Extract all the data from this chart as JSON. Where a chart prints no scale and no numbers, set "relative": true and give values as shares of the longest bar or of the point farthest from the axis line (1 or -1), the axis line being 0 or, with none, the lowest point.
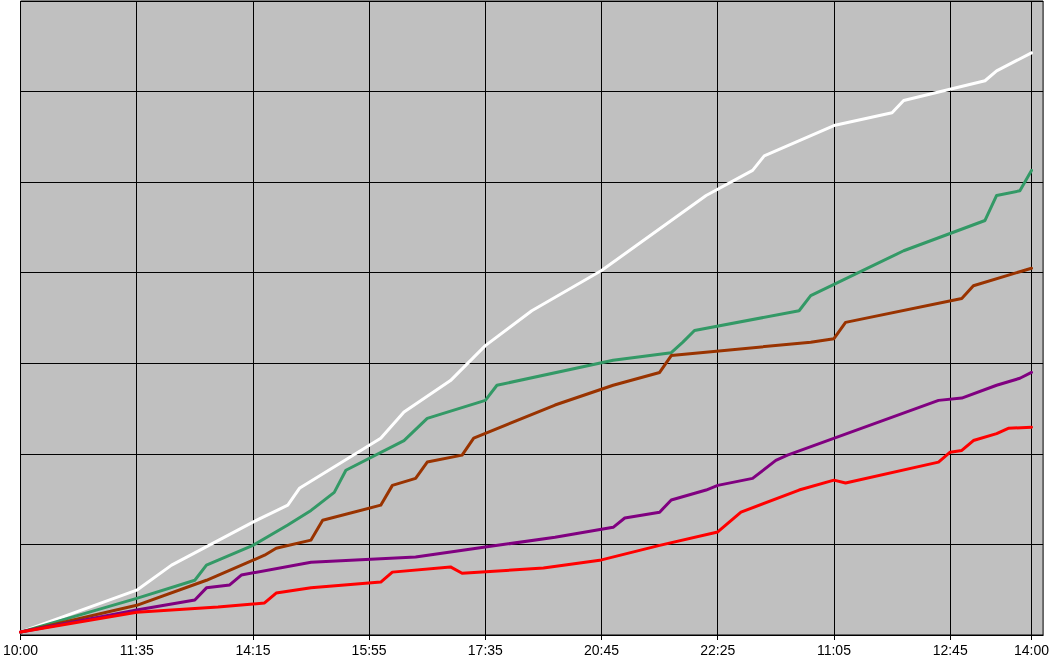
{
  "chart_data": {
    "type": "line",
    "relative": true,
    "grid": true,
    "marker": "none",
    "line_style": "solid",
    "categories": [
      "10:00",
      null,
      null,
      null,
      null,
      null,
      null,
      null,
      null,
      null,
      "11:35",
      null,
      null,
      null,
      null,
      null,
      null,
      null,
      null,
      null,
      "14:15",
      null,
      null,
      null,
      null,
      null,
      null,
      null,
      null,
      null,
      "15:55",
      null,
      null,
      null,
      null,
      null,
      null,
      null,
      null,
      null,
      "17:35",
      null,
      null,
      null,
      null,
      null,
      null,
      null,
      null,
      null,
      "20:45",
      null,
      null,
      null,
      null,
      null,
      null,
      null,
      null,
      null,
      "22:25",
      null,
      null,
      null,
      null,
      null,
      null,
      null,
      null,
      null,
      "11:05",
      null,
      null,
      null,
      null,
      null,
      null,
      null,
      null,
      null,
      "12:45",
      null,
      null,
      null,
      null,
      null,
      null,
      "14:00",
      null
    ],
    "series": [
      {
        "color": "#ffffff",
        "values": [
          0.005,
          null,
          null,
          null,
          null,
          null,
          null,
          null,
          null,
          null,
          0.077,
          null,
          null,
          0.12,
          null,
          null,
          null,
          null,
          null,
          null,
          0.194,
          null,
          null,
          0.223,
          0.252,
          null,
          null,
          null,
          null,
          null,
          null,
          0.338,
          null,
          0.383,
          null,
          null,
          null,
          0.437,
          null,
          null,
          0.497,
          null,
          null,
          null,
          0.557,
          null,
          null,
          null,
          null,
          null,
          0.626,
          null,
          null,
          0.669,
          null,
          null,
          null,
          null,
          null,
          0.755,
          null,
          null,
          null,
          0.798,
          0.823,
          null,
          null,
          null,
          null,
          null,
          0.875,
          null,
          null,
          null,
          null,
          0.897,
          0.918,
          null,
          null,
          null,
          null,
          null,
          null,
          0.952,
          0.969,
          null,
          null,
          1,
          null
        ]
      },
      {
        "color": "#339966",
        "values": [
          0.005,
          null,
          null,
          null,
          null,
          null,
          null,
          null,
          null,
          null,
          0.063,
          null,
          null,
          null,
          null,
          0.094,
          0.12,
          null,
          null,
          null,
          0.154,
          null,
          null,
          0.189,
          null,
          0.214,
          null,
          0.245,
          0.283,
          null,
          null,
          null,
          null,
          0.334,
          null,
          0.372,
          null,
          null,
          null,
          null,
          0.403,
          0.429,
          null,
          null,
          null,
          null,
          null,
          null,
          null,
          null,
          null,
          0.472,
          null,
          null,
          null,
          null,
          0.485,
          0.503,
          0.523,
          null,
          null,
          null,
          null,
          null,
          null,
          null,
          null,
          0.557,
          0.583,
          null,
          null,
          null,
          null,
          null,
          null,
          null,
          0.66,
          null,
          null,
          null,
          null,
          null,
          null,
          0.712,
          0.755,
          null,
          0.763,
          0.798,
          null
        ]
      },
      {
        "color": "#993300",
        "values": [
          0.005,
          null,
          null,
          null,
          null,
          null,
          null,
          null,
          null,
          null,
          0.051,
          null,
          null,
          null,
          null,
          null,
          0.094,
          null,
          null,
          null,
          null,
          0.137,
          0.149,
          null,
          null,
          0.163,
          0.197,
          null,
          null,
          null,
          null,
          0.223,
          0.257,
          null,
          0.269,
          0.297,
          null,
          null,
          0.309,
          0.338,
          null,
          null,
          null,
          null,
          null,
          null,
          0.395,
          null,
          null,
          null,
          null,
          0.429,
          null,
          null,
          null,
          0.451,
          0.48,
          null,
          null,
          null,
          null,
          null,
          null,
          null,
          null,
          null,
          null,
          null,
          0.503,
          null,
          0.509,
          0.537,
          null,
          null,
          null,
          null,
          null,
          null,
          null,
          null,
          null,
          0.578,
          0.6,
          null,
          null,
          null,
          null,
          0.63,
          null
        ]
      },
      {
        "color": "#800080",
        "values": [
          0.005,
          null,
          null,
          null,
          null,
          null,
          null,
          null,
          null,
          null,
          0.043,
          null,
          null,
          null,
          null,
          0.06,
          0.081,
          null,
          0.086,
          0.103,
          null,
          null,
          null,
          null,
          null,
          0.125,
          null,
          null,
          null,
          null,
          null,
          null,
          null,
          null,
          0.134,
          null,
          null,
          null,
          null,
          null,
          0.151,
          null,
          null,
          null,
          null,
          null,
          0.168,
          null,
          null,
          null,
          null,
          0.185,
          0.201,
          null,
          null,
          0.211,
          0.232,
          null,
          null,
          0.249,
          0.257,
          null,
          null,
          0.269,
          null,
          0.3,
          0.309,
          null,
          null,
          null,
          null,
          null,
          null,
          null,
          null,
          null,
          null,
          null,
          null,
          0.403,
          null,
          0.407,
          null,
          null,
          0.429,
          null,
          0.441,
          0.451,
          null
        ]
      },
      {
        "color": "#ff0000",
        "values": [
          0.005,
          null,
          null,
          null,
          null,
          null,
          null,
          null,
          null,
          null,
          0.039,
          null,
          null,
          null,
          null,
          null,
          null,
          0.048,
          null,
          null,
          null,
          0.055,
          0.072,
          null,
          null,
          0.081,
          null,
          null,
          null,
          null,
          null,
          0.091,
          0.108,
          null,
          null,
          null,
          null,
          0.117,
          0.106,
          null,
          null,
          null,
          null,
          null,
          null,
          0.115,
          null,
          null,
          null,
          null,
          0.129,
          null,
          null,
          null,
          null,
          0.154,
          null,
          null,
          null,
          null,
          0.177,
          null,
          0.211,
          null,
          null,
          null,
          null,
          0.249,
          null,
          null,
          0.266,
          0.261,
          null,
          null,
          null,
          null,
          null,
          null,
          null,
          0.297,
          0.314,
          0.317,
          0.334,
          null,
          0.346,
          0.355,
          null,
          0.357,
          null
        ]
      }
    ]
  }
}
